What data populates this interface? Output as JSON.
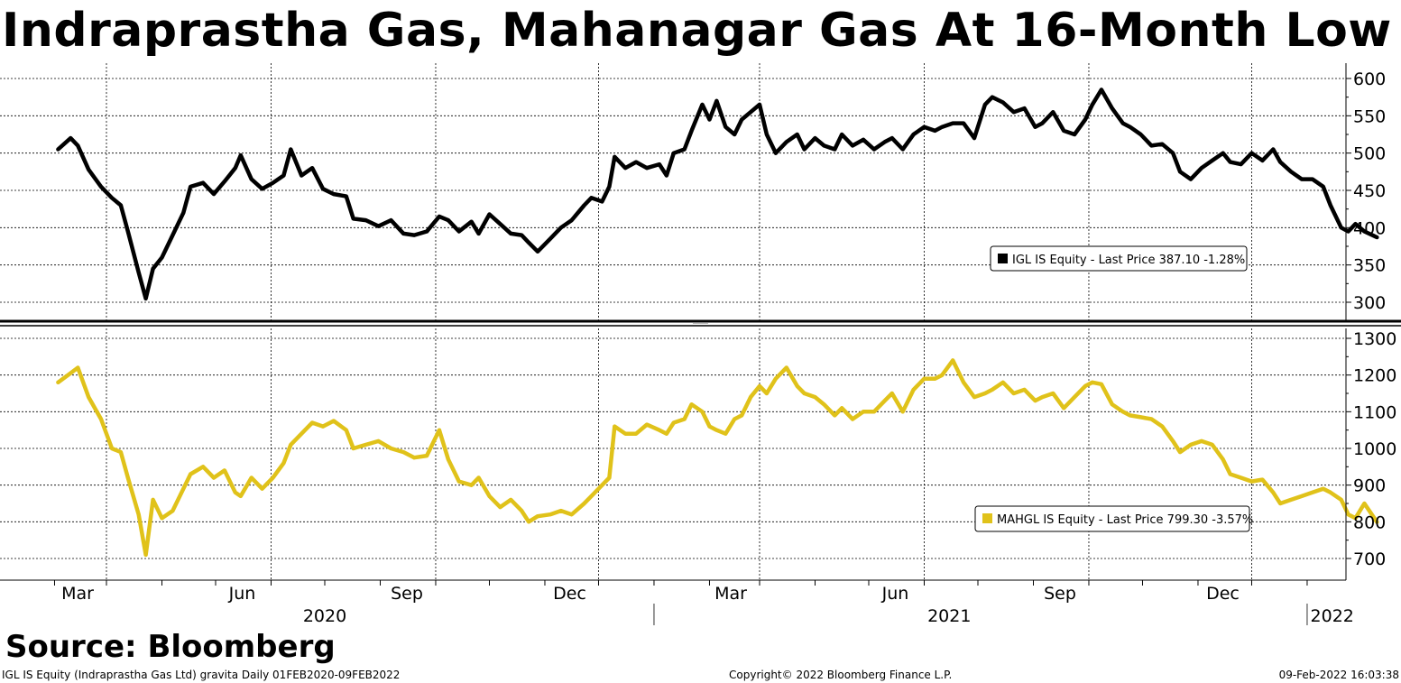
{
  "title": "Indraprastha Gas, Mahanagar Gas At 16-Month Low",
  "source": "Source: Bloomberg",
  "footer": {
    "left": "IGL IS Equity (Indraprastha Gas Ltd) gravita  Daily 01FEB2020-09FEB2022",
    "center": "Copyright© 2022 Bloomberg Finance L.P.",
    "right": "09-Feb-2022 16:03:38"
  },
  "colors": {
    "igl": "#000000",
    "mahgl": "#e0c21a",
    "grid": "#000000",
    "background": "#ffffff"
  },
  "x_axis": {
    "month_ticks": [
      {
        "label": "Mar",
        "date": "2020-03-01"
      },
      {
        "label": "Jun",
        "date": "2020-06-01"
      },
      {
        "label": "Sep",
        "date": "2020-09-01"
      },
      {
        "label": "Dec",
        "date": "2020-12-01"
      },
      {
        "label": "Mar",
        "date": "2021-03-01"
      },
      {
        "label": "Jun",
        "date": "2021-06-01"
      },
      {
        "label": "Sep",
        "date": "2021-09-01"
      },
      {
        "label": "Dec",
        "date": "2021-12-01"
      }
    ],
    "year_labels": [
      {
        "label": "2020",
        "date": "2020-07-01"
      },
      {
        "label": "2021",
        "date": "2021-06-15"
      },
      {
        "label": "2022",
        "date": "2022-01-15"
      }
    ],
    "year_separators": [
      "2021-01-01",
      "2022-01-01"
    ],
    "range": [
      "2020-02-01",
      "2022-02-09"
    ]
  },
  "chart_data": [
    {
      "type": "line",
      "name": "IGL IS Equity",
      "legend": {
        "text": "IGL IS Equity - Last Price 387.10  -1.28%",
        "position": "bottom-right"
      },
      "yticks": [
        300,
        350,
        400,
        450,
        500,
        550,
        600
      ],
      "ylim": [
        280,
        610
      ],
      "grid": true,
      "points": [
        [
          "2020-02-03",
          505
        ],
        [
          "2020-02-10",
          520
        ],
        [
          "2020-02-14",
          510
        ],
        [
          "2020-02-20",
          478
        ],
        [
          "2020-02-27",
          455
        ],
        [
          "2020-03-04",
          440
        ],
        [
          "2020-03-09",
          430
        ],
        [
          "2020-03-13",
          395
        ],
        [
          "2020-03-19",
          340
        ],
        [
          "2020-03-23",
          305
        ],
        [
          "2020-03-27",
          345
        ],
        [
          "2020-04-01",
          360
        ],
        [
          "2020-04-07",
          390
        ],
        [
          "2020-04-13",
          420
        ],
        [
          "2020-04-17",
          455
        ],
        [
          "2020-04-24",
          460
        ],
        [
          "2020-04-30",
          445
        ],
        [
          "2020-05-06",
          462
        ],
        [
          "2020-05-12",
          480
        ],
        [
          "2020-05-15",
          497
        ],
        [
          "2020-05-21",
          465
        ],
        [
          "2020-05-27",
          452
        ],
        [
          "2020-06-02",
          460
        ],
        [
          "2020-06-08",
          470
        ],
        [
          "2020-06-12",
          505
        ],
        [
          "2020-06-18",
          470
        ],
        [
          "2020-06-24",
          480
        ],
        [
          "2020-06-30",
          452
        ],
        [
          "2020-07-06",
          445
        ],
        [
          "2020-07-13",
          442
        ],
        [
          "2020-07-17",
          412
        ],
        [
          "2020-07-24",
          410
        ],
        [
          "2020-07-31",
          402
        ],
        [
          "2020-08-07",
          410
        ],
        [
          "2020-08-14",
          392
        ],
        [
          "2020-08-20",
          390
        ],
        [
          "2020-08-27",
          395
        ],
        [
          "2020-09-03",
          415
        ],
        [
          "2020-09-08",
          410
        ],
        [
          "2020-09-14",
          395
        ],
        [
          "2020-09-21",
          408
        ],
        [
          "2020-09-25",
          392
        ],
        [
          "2020-10-01",
          418
        ],
        [
          "2020-10-07",
          405
        ],
        [
          "2020-10-13",
          392
        ],
        [
          "2020-10-19",
          390
        ],
        [
          "2020-10-23",
          380
        ],
        [
          "2020-10-28",
          368
        ],
        [
          "2020-11-04",
          385
        ],
        [
          "2020-11-10",
          400
        ],
        [
          "2020-11-16",
          410
        ],
        [
          "2020-11-23",
          430
        ],
        [
          "2020-11-27",
          440
        ],
        [
          "2020-12-03",
          435
        ],
        [
          "2020-12-07",
          455
        ],
        [
          "2020-12-10",
          495
        ],
        [
          "2020-12-16",
          480
        ],
        [
          "2020-12-22",
          488
        ],
        [
          "2020-12-28",
          480
        ],
        [
          "2021-01-04",
          485
        ],
        [
          "2021-01-08",
          470
        ],
        [
          "2021-01-12",
          500
        ],
        [
          "2021-01-18",
          505
        ],
        [
          "2021-01-22",
          530
        ],
        [
          "2021-01-28",
          565
        ],
        [
          "2021-02-01",
          545
        ],
        [
          "2021-02-05",
          570
        ],
        [
          "2021-02-10",
          535
        ],
        [
          "2021-02-15",
          525
        ],
        [
          "2021-02-19",
          545
        ],
        [
          "2021-02-24",
          555
        ],
        [
          "2021-03-01",
          565
        ],
        [
          "2021-03-05",
          525
        ],
        [
          "2021-03-10",
          500
        ],
        [
          "2021-03-16",
          515
        ],
        [
          "2021-03-22",
          525
        ],
        [
          "2021-03-26",
          505
        ],
        [
          "2021-04-01",
          520
        ],
        [
          "2021-04-06",
          510
        ],
        [
          "2021-04-12",
          505
        ],
        [
          "2021-04-16",
          525
        ],
        [
          "2021-04-22",
          510
        ],
        [
          "2021-04-28",
          518
        ],
        [
          "2021-05-04",
          505
        ],
        [
          "2021-05-10",
          515
        ],
        [
          "2021-05-14",
          520
        ],
        [
          "2021-05-20",
          505
        ],
        [
          "2021-05-26",
          525
        ],
        [
          "2021-06-01",
          535
        ],
        [
          "2021-06-07",
          530
        ],
        [
          "2021-06-11",
          535
        ],
        [
          "2021-06-17",
          540
        ],
        [
          "2021-06-23",
          540
        ],
        [
          "2021-06-29",
          520
        ],
        [
          "2021-07-05",
          565
        ],
        [
          "2021-07-09",
          575
        ],
        [
          "2021-07-15",
          568
        ],
        [
          "2021-07-21",
          555
        ],
        [
          "2021-07-27",
          560
        ],
        [
          "2021-08-02",
          535
        ],
        [
          "2021-08-06",
          540
        ],
        [
          "2021-08-12",
          555
        ],
        [
          "2021-08-18",
          530
        ],
        [
          "2021-08-24",
          525
        ],
        [
          "2021-08-30",
          545
        ],
        [
          "2021-09-03",
          565
        ],
        [
          "2021-09-08",
          585
        ],
        [
          "2021-09-14",
          560
        ],
        [
          "2021-09-20",
          540
        ],
        [
          "2021-09-24",
          535
        ],
        [
          "2021-09-30",
          525
        ],
        [
          "2021-10-06",
          510
        ],
        [
          "2021-10-12",
          512
        ],
        [
          "2021-10-18",
          500
        ],
        [
          "2021-10-22",
          475
        ],
        [
          "2021-10-28",
          465
        ],
        [
          "2021-11-03",
          480
        ],
        [
          "2021-11-09",
          490
        ],
        [
          "2021-11-15",
          500
        ],
        [
          "2021-11-19",
          488
        ],
        [
          "2021-11-25",
          485
        ],
        [
          "2021-12-01",
          500
        ],
        [
          "2021-12-07",
          490
        ],
        [
          "2021-12-13",
          505
        ],
        [
          "2021-12-17",
          488
        ],
        [
          "2021-12-23",
          475
        ],
        [
          "2021-12-29",
          465
        ],
        [
          "2022-01-04",
          465
        ],
        [
          "2022-01-10",
          455
        ],
        [
          "2022-01-14",
          430
        ],
        [
          "2022-01-20",
          400
        ],
        [
          "2022-01-24",
          395
        ],
        [
          "2022-01-28",
          405
        ],
        [
          "2022-02-02",
          395
        ],
        [
          "2022-02-09",
          387.1
        ]
      ]
    },
    {
      "type": "line",
      "name": "MAHGL IS Equity",
      "legend": {
        "text": "MAHGL IS Equity - Last Price 799.30  -3.57%",
        "position": "bottom-right"
      },
      "yticks": [
        700,
        800,
        900,
        1000,
        1100,
        1200,
        1300
      ],
      "ylim": [
        645,
        1330
      ],
      "grid": true,
      "points": [
        [
          "2020-02-03",
          1180
        ],
        [
          "2020-02-10",
          1205
        ],
        [
          "2020-02-14",
          1220
        ],
        [
          "2020-02-20",
          1140
        ],
        [
          "2020-02-27",
          1080
        ],
        [
          "2020-03-04",
          1000
        ],
        [
          "2020-03-09",
          990
        ],
        [
          "2020-03-13",
          920
        ],
        [
          "2020-03-19",
          820
        ],
        [
          "2020-03-23",
          710
        ],
        [
          "2020-03-27",
          860
        ],
        [
          "2020-04-01",
          810
        ],
        [
          "2020-04-07",
          830
        ],
        [
          "2020-04-13",
          890
        ],
        [
          "2020-04-17",
          930
        ],
        [
          "2020-04-24",
          950
        ],
        [
          "2020-04-30",
          920
        ],
        [
          "2020-05-06",
          940
        ],
        [
          "2020-05-12",
          880
        ],
        [
          "2020-05-15",
          870
        ],
        [
          "2020-05-21",
          920
        ],
        [
          "2020-05-27",
          890
        ],
        [
          "2020-06-02",
          920
        ],
        [
          "2020-06-08",
          960
        ],
        [
          "2020-06-12",
          1010
        ],
        [
          "2020-06-18",
          1040
        ],
        [
          "2020-06-24",
          1070
        ],
        [
          "2020-06-30",
          1060
        ],
        [
          "2020-07-06",
          1075
        ],
        [
          "2020-07-13",
          1050
        ],
        [
          "2020-07-17",
          1000
        ],
        [
          "2020-07-24",
          1010
        ],
        [
          "2020-07-31",
          1020
        ],
        [
          "2020-08-07",
          1000
        ],
        [
          "2020-08-14",
          990
        ],
        [
          "2020-08-20",
          975
        ],
        [
          "2020-08-27",
          980
        ],
        [
          "2020-09-03",
          1050
        ],
        [
          "2020-09-08",
          970
        ],
        [
          "2020-09-14",
          910
        ],
        [
          "2020-09-21",
          900
        ],
        [
          "2020-09-25",
          920
        ],
        [
          "2020-10-01",
          870
        ],
        [
          "2020-10-07",
          840
        ],
        [
          "2020-10-13",
          860
        ],
        [
          "2020-10-19",
          830
        ],
        [
          "2020-10-23",
          800
        ],
        [
          "2020-10-28",
          815
        ],
        [
          "2020-11-04",
          820
        ],
        [
          "2020-11-10",
          830
        ],
        [
          "2020-11-16",
          820
        ],
        [
          "2020-11-23",
          850
        ],
        [
          "2020-11-27",
          870
        ],
        [
          "2020-12-03",
          900
        ],
        [
          "2020-12-07",
          920
        ],
        [
          "2020-12-10",
          1060
        ],
        [
          "2020-12-16",
          1040
        ],
        [
          "2020-12-22",
          1040
        ],
        [
          "2020-12-28",
          1065
        ],
        [
          "2021-01-04",
          1050
        ],
        [
          "2021-01-08",
          1040
        ],
        [
          "2021-01-12",
          1070
        ],
        [
          "2021-01-18",
          1080
        ],
        [
          "2021-01-22",
          1120
        ],
        [
          "2021-01-28",
          1100
        ],
        [
          "2021-02-01",
          1060
        ],
        [
          "2021-02-05",
          1050
        ],
        [
          "2021-02-10",
          1040
        ],
        [
          "2021-02-15",
          1080
        ],
        [
          "2021-02-19",
          1090
        ],
        [
          "2021-02-24",
          1140
        ],
        [
          "2021-03-01",
          1170
        ],
        [
          "2021-03-05",
          1150
        ],
        [
          "2021-03-10",
          1190
        ],
        [
          "2021-03-16",
          1220
        ],
        [
          "2021-03-22",
          1170
        ],
        [
          "2021-03-26",
          1150
        ],
        [
          "2021-04-01",
          1140
        ],
        [
          "2021-04-06",
          1120
        ],
        [
          "2021-04-12",
          1090
        ],
        [
          "2021-04-16",
          1110
        ],
        [
          "2021-04-22",
          1080
        ],
        [
          "2021-04-28",
          1100
        ],
        [
          "2021-05-04",
          1100
        ],
        [
          "2021-05-10",
          1130
        ],
        [
          "2021-05-14",
          1150
        ],
        [
          "2021-05-20",
          1100
        ],
        [
          "2021-05-26",
          1160
        ],
        [
          "2021-06-01",
          1190
        ],
        [
          "2021-06-07",
          1190
        ],
        [
          "2021-06-11",
          1200
        ],
        [
          "2021-06-17",
          1240
        ],
        [
          "2021-06-23",
          1180
        ],
        [
          "2021-06-29",
          1140
        ],
        [
          "2021-07-05",
          1150
        ],
        [
          "2021-07-09",
          1160
        ],
        [
          "2021-07-15",
          1180
        ],
        [
          "2021-07-21",
          1150
        ],
        [
          "2021-07-27",
          1160
        ],
        [
          "2021-08-02",
          1130
        ],
        [
          "2021-08-06",
          1140
        ],
        [
          "2021-08-12",
          1150
        ],
        [
          "2021-08-18",
          1110
        ],
        [
          "2021-08-24",
          1140
        ],
        [
          "2021-08-30",
          1170
        ],
        [
          "2021-09-03",
          1180
        ],
        [
          "2021-09-08",
          1175
        ],
        [
          "2021-09-14",
          1120
        ],
        [
          "2021-09-20",
          1100
        ],
        [
          "2021-09-24",
          1090
        ],
        [
          "2021-09-30",
          1085
        ],
        [
          "2021-10-06",
          1080
        ],
        [
          "2021-10-12",
          1060
        ],
        [
          "2021-10-18",
          1020
        ],
        [
          "2021-10-22",
          990
        ],
        [
          "2021-10-28",
          1010
        ],
        [
          "2021-11-03",
          1020
        ],
        [
          "2021-11-09",
          1010
        ],
        [
          "2021-11-15",
          970
        ],
        [
          "2021-11-19",
          930
        ],
        [
          "2021-11-25",
          920
        ],
        [
          "2021-12-01",
          910
        ],
        [
          "2021-12-07",
          915
        ],
        [
          "2021-12-13",
          880
        ],
        [
          "2021-12-17",
          850
        ],
        [
          "2021-12-23",
          860
        ],
        [
          "2021-12-29",
          870
        ],
        [
          "2022-01-04",
          880
        ],
        [
          "2022-01-10",
          890
        ],
        [
          "2022-01-14",
          880
        ],
        [
          "2022-01-20",
          860
        ],
        [
          "2022-01-24",
          820
        ],
        [
          "2022-01-28",
          810
        ],
        [
          "2022-02-02",
          850
        ],
        [
          "2022-02-09",
          799.3
        ]
      ]
    }
  ]
}
